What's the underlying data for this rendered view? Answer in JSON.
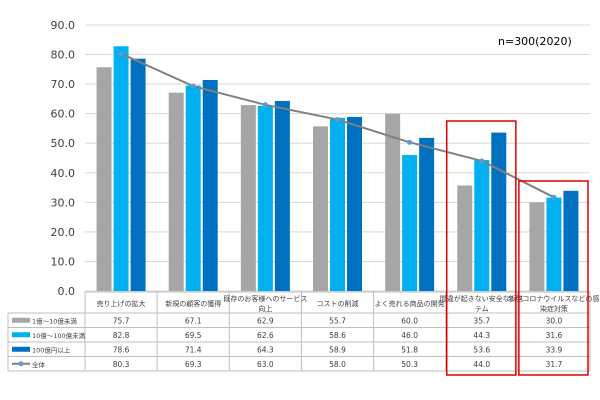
{
  "chart_data": {
    "type": "bar",
    "note": "n=300(2020)",
    "ylim": [
      0,
      90
    ],
    "yticks": [
      "0.0",
      "10.0",
      "20.0",
      "30.0",
      "40.0",
      "50.0",
      "60.0",
      "70.0",
      "80.0",
      "90.0"
    ],
    "grid": true,
    "categories": [
      [
        "売り上げの拡大"
      ],
      [
        "新規の顧客の獲得"
      ],
      [
        "既存のお客様へのサービス",
        "向上"
      ],
      [
        "コストの削減"
      ],
      [
        "よく売れる商品の開発"
      ],
      [
        "間違が起きない安全なシス",
        "テム"
      ],
      [
        "新型コロナウイルスなどの感",
        "染症対策"
      ]
    ],
    "series": [
      {
        "name": "1億～10億未満",
        "type": "bar",
        "color": "#a6a6a6",
        "values": [
          75.7,
          67.1,
          62.9,
          55.7,
          60.0,
          35.7,
          30.0
        ]
      },
      {
        "name": "10億～100億未満",
        "type": "bar",
        "color": "#00b0f0",
        "values": [
          82.8,
          69.5,
          62.6,
          58.6,
          46.0,
          44.3,
          31.6
        ]
      },
      {
        "name": "100億円以上",
        "type": "bar",
        "color": "#0070c0",
        "values": [
          78.6,
          71.4,
          64.3,
          58.9,
          51.8,
          53.6,
          33.9
        ]
      },
      {
        "name": "全体",
        "type": "line",
        "color": "#808080",
        "values": [
          80.3,
          69.3,
          63.0,
          58.0,
          50.3,
          44.0,
          31.7
        ]
      }
    ],
    "highlight_color": "#e00000",
    "highlighted_categories": [
      5,
      6
    ],
    "table": {
      "rows": [
        [
          "75.7",
          "67.1",
          "62.9",
          "55.7",
          "60.0",
          "35.7",
          "30.0"
        ],
        [
          "82.8",
          "69.5",
          "62.6",
          "58.6",
          "46.0",
          "44.3",
          "31.6"
        ],
        [
          "78.6",
          "71.4",
          "64.3",
          "58.9",
          "51.8",
          "53.6",
          "33.9"
        ],
        [
          "80.3",
          "69.3",
          "63.0",
          "58.0",
          "50.3",
          "44.0",
          "31.7"
        ]
      ]
    }
  }
}
